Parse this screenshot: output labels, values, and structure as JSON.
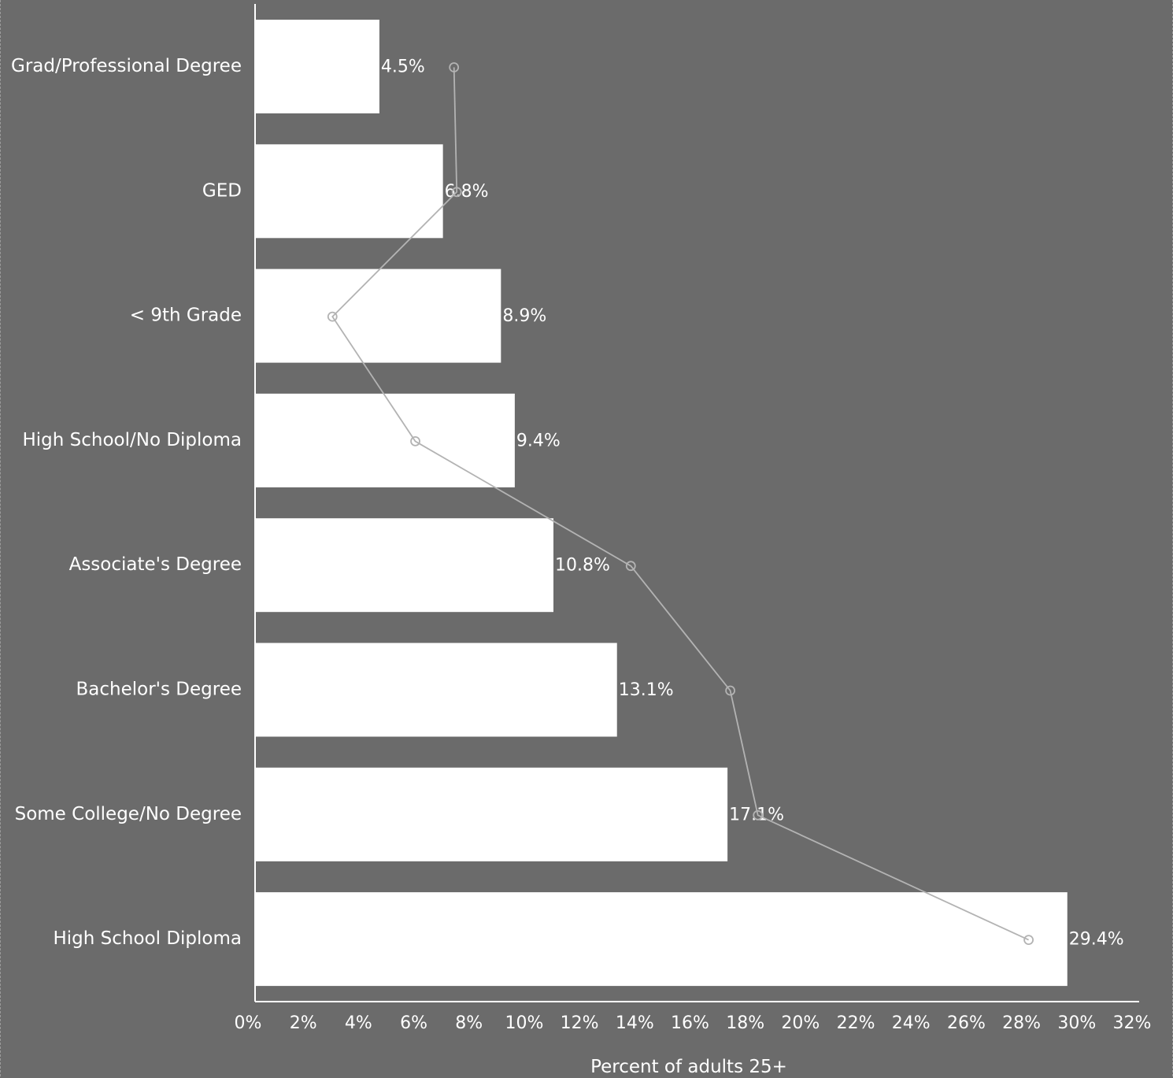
{
  "colors": {
    "background": "#6b6b6b",
    "bar": "#ffffff",
    "axis": "#ffffff",
    "line": "#b3b3b3",
    "text": "#ffffff"
  },
  "chart_data": {
    "type": "bar",
    "orientation": "horizontal",
    "title": "",
    "xlabel": "Percent of adults 25+",
    "ylabel": "",
    "xlim": [
      0,
      32
    ],
    "x_ticks": [
      "0%",
      "2%",
      "4%",
      "6%",
      "8%",
      "10%",
      "12%",
      "14%",
      "16%",
      "18%",
      "20%",
      "22%",
      "24%",
      "26%",
      "28%",
      "30%",
      "32%"
    ],
    "grid": false,
    "legend": "none",
    "categories": [
      "Grad/Professional Degree",
      "GED",
      "< 9th Grade",
      "High School/No Diploma",
      "Associate's Degree",
      "Bachelor's Degree",
      "Some College/No Degree",
      "High School Diploma"
    ],
    "series": [
      {
        "type": "bar",
        "values": [
          4.5,
          6.8,
          8.9,
          9.4,
          10.8,
          13.1,
          17.1,
          29.4
        ],
        "data_labels": [
          "4.5%",
          "6.8%",
          "8.9%",
          "9.4%",
          "10.8%",
          "13.1%",
          "17.1%",
          "29.4%"
        ]
      },
      {
        "type": "line",
        "marker": "hollow-circle",
        "values": [
          7.2,
          7.3,
          2.8,
          5.8,
          13.6,
          17.2,
          18.2,
          28.0
        ]
      }
    ]
  }
}
